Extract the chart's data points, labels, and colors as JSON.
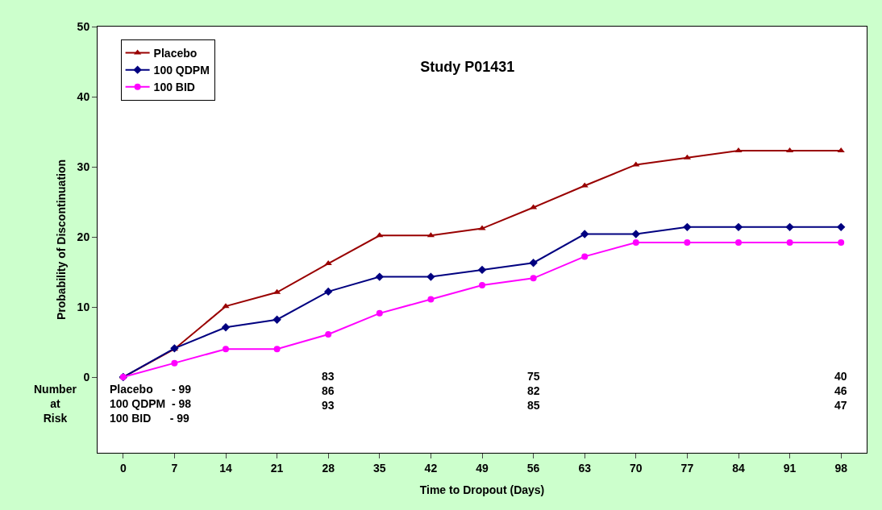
{
  "chart_data": {
    "type": "line",
    "title": "Study P01431",
    "xlabel": "Time to Dropout (Days)",
    "ylabel": "Probability of Discontinuation",
    "x": [
      0,
      7,
      14,
      21,
      28,
      35,
      42,
      49,
      56,
      63,
      70,
      77,
      84,
      91,
      98
    ],
    "xlim": [
      -3.5,
      101.5
    ],
    "xticks": [
      0,
      7,
      14,
      21,
      28,
      35,
      42,
      49,
      56,
      63,
      70,
      77,
      84,
      91,
      98
    ],
    "ylim": [
      -10.8,
      50
    ],
    "yticks": [
      0,
      10,
      20,
      30,
      40,
      50
    ],
    "legend": "top left",
    "series": [
      {
        "name": "Placebo",
        "color": "#990000",
        "marker": "triangle",
        "values": [
          0,
          4.0,
          10.1,
          12.1,
          16.2,
          20.2,
          20.2,
          21.2,
          24.2,
          27.3,
          30.3,
          31.3,
          32.3,
          32.3,
          32.3
        ]
      },
      {
        "name": "100 QDPM",
        "color": "#000080",
        "marker": "diamond",
        "values": [
          0,
          4.1,
          7.1,
          8.2,
          12.2,
          14.3,
          14.3,
          15.3,
          16.3,
          20.4,
          20.4,
          21.4,
          21.4,
          21.4,
          21.4
        ]
      },
      {
        "name": "100 BID",
        "color": "#ff00ff",
        "marker": "circle",
        "values": [
          0,
          2.0,
          4.0,
          4.0,
          6.1,
          9.1,
          11.1,
          13.1,
          14.1,
          17.2,
          19.2,
          19.2,
          19.2,
          19.2,
          19.2
        ]
      }
    ],
    "annotations": [
      "Number\nat\nRisk",
      "Placebo      - 99\n100 QDPM  - 98\n100 BID      - 99",
      "83\n86\n93",
      "75\n82\n85",
      "40\n46\n47"
    ]
  }
}
